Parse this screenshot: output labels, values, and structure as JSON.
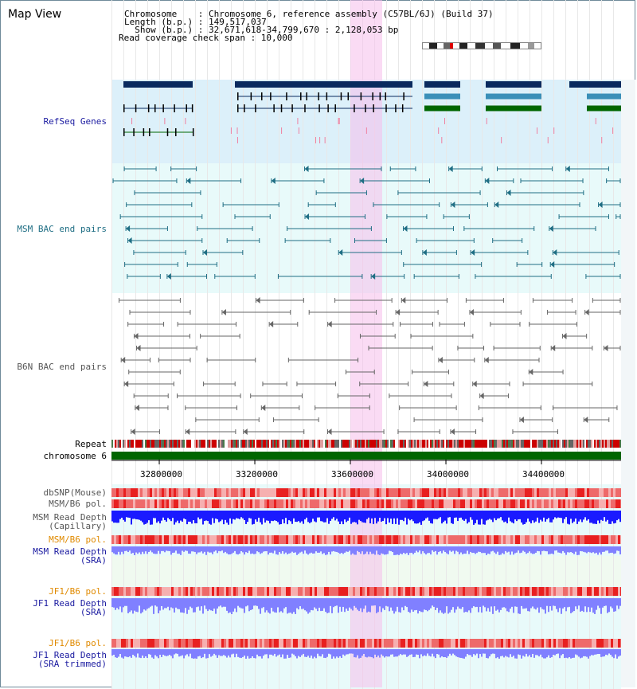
{
  "app": {
    "title": "Map View"
  },
  "header": {
    "chromosome_line": "Chromosome    : Chromosome 6, reference assembly (C57BL/6J) (Build 37)",
    "length_line": "Length (b.p.) : 149,517,037",
    "show_line": "  Show (b.p.) : 32,671,618-34,799,670 : 2,128,053 bp",
    "span_line": "Read coverage check span : 10,000"
  },
  "tracks": {
    "refseq": "RefSeq Genes",
    "msm_bac": "MSM BAC end pairs",
    "b6n_bac": "B6N BAC end pairs",
    "repeat": "Repeat",
    "chromosome": "chromosome 6",
    "dbsnp": "dbSNP(Mouse)",
    "msm_b6_pol_1": "MSM/B6 pol.",
    "msm_read_depth_cap": "MSM Read Depth\n(Capillary)",
    "msm_b6_pol_2": "MSM/B6 pol.",
    "msm_read_depth_sra": "MSM Read Depth\n(SRA)",
    "jf1_b6_pol_1": "JF1/B6 pol.",
    "jf1_read_depth_sra": "JF1 Read Depth\n(SRA)",
    "jf1_b6_pol_2": "JF1/B6 pol.",
    "jf1_read_depth_trim": "JF1 Read Depth\n(SRA trimmed)"
  },
  "axis": {
    "ticks": [
      "32800000",
      "33200000",
      "33600000",
      "34000000",
      "34400000"
    ]
  },
  "colors": {
    "refseq_bg": "#dcf0fa",
    "bac_bg": "#e8fafa",
    "highlight": "#f5bee9",
    "chromosome": "#006600",
    "msm_bac_line": "#1f6e84",
    "b6n_bac_line": "#666666",
    "capillary_depth": "#1a1aff",
    "sra_depth": "#8080ff"
  }
}
